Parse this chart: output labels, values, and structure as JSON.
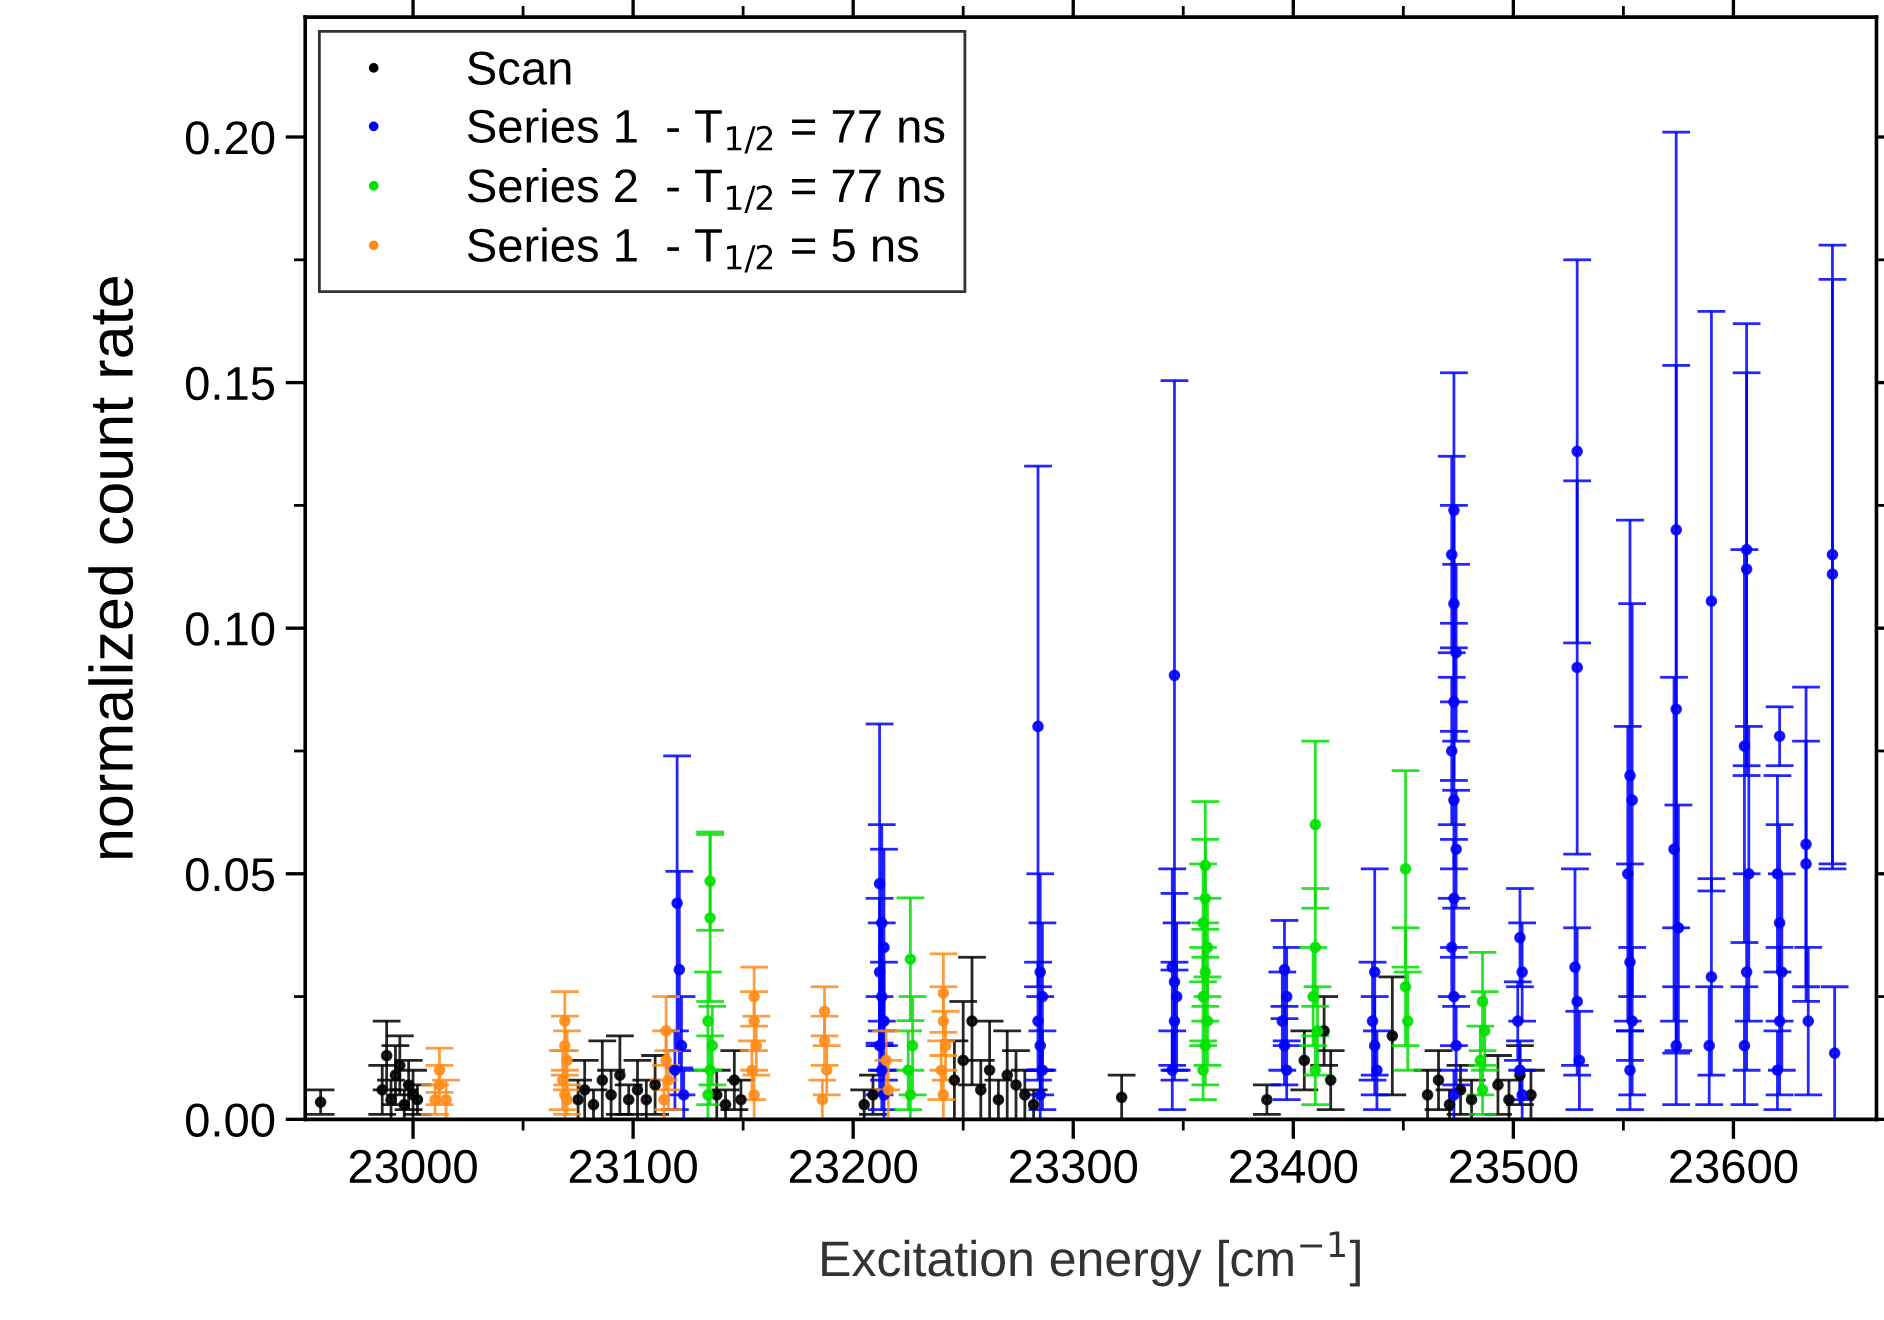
{
  "chart_data": {
    "type": "scatter",
    "xlabel": "Excitation energy [cm$^{−1}$]",
    "ylabel": "normalized count rate",
    "xlim": [
      22951,
      23665
    ],
    "ylim": [
      0,
      0.2244
    ],
    "xticks": [
      23000,
      {
        "value": 23050,
        "label": null
      },
      23100,
      {
        "value": 23150,
        "label": null
      },
      23200,
      {
        "value": 23250,
        "label": null
      },
      23300,
      {
        "value": 23350,
        "label": null
      },
      23400,
      {
        "value": 23450,
        "label": null
      },
      23500,
      {
        "value": 23550,
        "label": null
      },
      23600
    ],
    "yticks": [
      {
        "value": 0,
        "label": "0.00"
      },
      {
        "value": 0.025,
        "label": null
      },
      {
        "value": 0.05,
        "label": "0.05"
      },
      {
        "value": 0.075,
        "label": null
      },
      {
        "value": 0.1,
        "label": "0.10"
      },
      {
        "value": 0.125,
        "label": null
      },
      {
        "value": 0.15,
        "label": "0.15"
      },
      {
        "value": 0.175,
        "label": null
      },
      {
        "value": 0.2,
        "label": "0.20"
      }
    ],
    "marker": "circle",
    "legend": "top left",
    "grid": false,
    "series": [
      {
        "name": "Scan",
        "color": "#000000",
        "x": [
          22958,
          22986,
          22988,
          22990,
          22992,
          22994,
          22996,
          22998,
          23000,
          23002,
          23075,
          23078,
          23082,
          23086,
          23090,
          23094,
          23098,
          23102,
          23106,
          23110,
          23138,
          23142,
          23146,
          23149,
          23205,
          23209,
          23246,
          23250,
          23254,
          23258,
          23262,
          23266,
          23270,
          23274,
          23278,
          23282,
          23322,
          23388,
          23405,
          23414,
          23417,
          23445,
          23461,
          23466,
          23471,
          23476,
          23481,
          23493,
          23498,
          23503,
          23508
        ],
        "values": [
          0.0035,
          0.006,
          0.013,
          0.004,
          0.009,
          0.011,
          0.003,
          0.007,
          0.005,
          0.004,
          0.004,
          0.006,
          0.003,
          0.008,
          0.005,
          0.009,
          0.004,
          0.006,
          0.004,
          0.007,
          0.005,
          0.003,
          0.008,
          0.004,
          0.003,
          0.005,
          0.008,
          0.012,
          0.02,
          0.006,
          0.01,
          0.004,
          0.009,
          0.007,
          0.005,
          0.003,
          0.0045,
          0.004,
          0.012,
          0.018,
          0.008,
          0.017,
          0.005,
          0.008,
          0.003,
          0.006,
          0.004,
          0.007,
          0.004,
          0.009,
          0.005
        ],
        "errors": [
          0.0025,
          0.005,
          0.007,
          0.004,
          0.006,
          0.006,
          0.003,
          0.005,
          0.005,
          0.003,
          0.004,
          0.006,
          0.003,
          0.008,
          0.005,
          0.008,
          0.003,
          0.006,
          0.004,
          0.006,
          0.005,
          0.003,
          0.006,
          0.004,
          0.003,
          0.004,
          0.008,
          0.012,
          0.013,
          0.006,
          0.01,
          0.004,
          0.009,
          0.007,
          0.005,
          0.003,
          0.0045,
          0.003,
          0.006,
          0.007,
          0.006,
          0.012,
          0.005,
          0.006,
          0.003,
          0.005,
          0.004,
          0.006,
          0.004,
          0.006,
          0.005
        ]
      },
      {
        "name": "Series 1  - T$_{1/2}$ = 77 ns",
        "color": "#0000ff",
        "x": [
          23120,
          23121,
          23122,
          23119,
          23123,
          23212,
          23213,
          23214,
          23212,
          23213,
          23214,
          23212,
          23213,
          23214,
          23284,
          23285,
          23286,
          23284,
          23285,
          23286,
          23285,
          23346,
          23345,
          23346,
          23347,
          23346,
          23345,
          23396,
          23397,
          23395,
          23396,
          23397,
          23437,
          23436,
          23437,
          23438,
          23473,
          23472,
          23473,
          23474,
          23473,
          23472,
          23473,
          23474,
          23473,
          23472,
          23473,
          23474,
          23473,
          23503,
          23504,
          23502,
          23503,
          23504,
          23529,
          23529,
          23528,
          23529,
          23530,
          23553,
          23554,
          23552,
          23553,
          23554,
          23553,
          23574,
          23574,
          23573,
          23575,
          23574,
          23590,
          23590,
          23589,
          23606,
          23606,
          23605,
          23607,
          23606,
          23605,
          23621,
          23620,
          23621,
          23622,
          23621,
          23620,
          23633,
          23633,
          23634,
          23645,
          23645,
          23646
        ],
        "values": [
          0.044,
          0.0305,
          0.015,
          0.01,
          0.005,
          0.048,
          0.04,
          0.035,
          0.03,
          0.025,
          0.02,
          0.015,
          0.01,
          0.005,
          0.08,
          0.03,
          0.025,
          0.02,
          0.015,
          0.01,
          0.005,
          0.0904,
          0.031,
          0.028,
          0.025,
          0.02,
          0.01,
          0.0305,
          0.025,
          0.02,
          0.015,
          0.01,
          0.03,
          0.02,
          0.015,
          0.01,
          0.124,
          0.115,
          0.105,
          0.095,
          0.085,
          0.075,
          0.065,
          0.055,
          0.045,
          0.035,
          0.025,
          0.015,
          0.005,
          0.037,
          0.03,
          0.02,
          0.01,
          0.005,
          0.136,
          0.092,
          0.031,
          0.024,
          0.012,
          0.07,
          0.065,
          0.05,
          0.032,
          0.02,
          0.01,
          0.12,
          0.0835,
          0.055,
          0.039,
          0.015,
          0.1055,
          0.029,
          0.015,
          0.116,
          0.112,
          0.076,
          0.05,
          0.03,
          0.015,
          0.078,
          0.05,
          0.04,
          0.03,
          0.02,
          0.01,
          0.056,
          0.052,
          0.02,
          0.115,
          0.111,
          0.0135
        ],
        "errors": [
          0.03,
          0.02,
          0.01,
          0.008,
          0.005,
          0.0325,
          0.02,
          0.02,
          0.015,
          0.015,
          0.012,
          0.01,
          0.008,
          0.005,
          0.053,
          0.02,
          0.015,
          0.012,
          0.01,
          0.008,
          0.005,
          0.06,
          0.02,
          0.018,
          0.015,
          0.012,
          0.008,
          0.01,
          0.01,
          0.01,
          0.008,
          0.006,
          0.021,
          0.012,
          0.01,
          0.008,
          0.028,
          0.02,
          0.02,
          0.018,
          0.016,
          0.015,
          0.014,
          0.012,
          0.012,
          0.01,
          0.01,
          0.008,
          0.005,
          0.01,
          0.01,
          0.008,
          0.006,
          0.005,
          0.039,
          0.038,
          0.02,
          0.015,
          0.01,
          0.052,
          0.04,
          0.03,
          0.02,
          0.015,
          0.008,
          0.081,
          0.07,
          0.035,
          0.025,
          0.012,
          0.059,
          0.02,
          0.012,
          0.046,
          0.04,
          0.04,
          0.03,
          0.02,
          0.012,
          0.006,
          0.02,
          0.02,
          0.02,
          0.015,
          0.008,
          0.032,
          0.025,
          0.015,
          0.063,
          0.06,
          0.0135
        ]
      },
      {
        "name": "Series 2  - T$_{1/2}$ = 77 ns",
        "color": "#00e000",
        "x": [
          23135,
          23135,
          23134,
          23136,
          23135,
          23134,
          23226,
          23227,
          23225,
          23226,
          23360,
          23360,
          23359,
          23361,
          23360,
          23359,
          23361,
          23360,
          23359,
          23410,
          23410,
          23409,
          23411,
          23410,
          23451,
          23451,
          23452,
          23486,
          23487,
          23485,
          23486
        ],
        "values": [
          0.0485,
          0.041,
          0.02,
          0.015,
          0.01,
          0.005,
          0.0326,
          0.015,
          0.01,
          0.005,
          0.0517,
          0.045,
          0.04,
          0.035,
          0.03,
          0.025,
          0.02,
          0.015,
          0.01,
          0.06,
          0.035,
          0.025,
          0.018,
          0.01,
          0.051,
          0.027,
          0.02,
          0.024,
          0.018,
          0.012,
          0.006
        ],
        "errors": [
          0.01,
          0.017,
          0.01,
          0.008,
          0.007,
          0.005,
          0.0125,
          0.01,
          0.008,
          0.005,
          0.013,
          0.012,
          0.012,
          0.01,
          0.01,
          0.01,
          0.009,
          0.008,
          0.006,
          0.017,
          0.012,
          0.01,
          0.009,
          0.007,
          0.02,
          0.012,
          0.01,
          0.01,
          0.008,
          0.007,
          0.005
        ]
      },
      {
        "name": "Series 1  - T$_{1/2}$ = 5 ns",
        "color": "#ff8c1a",
        "x": [
          23012,
          23012,
          23015,
          23010,
          23069,
          23069,
          23070,
          23068,
          23069,
          23070,
          23115,
          23115,
          23116,
          23114,
          23155,
          23155,
          23156,
          23154,
          23155,
          23187,
          23187,
          23188,
          23186,
          23215,
          23216,
          23241,
          23241,
          23242,
          23240,
          23241
        ],
        "values": [
          0.01,
          0.007,
          0.004,
          0.004,
          0.02,
          0.015,
          0.012,
          0.008,
          0.005,
          0.004,
          0.018,
          0.012,
          0.008,
          0.004,
          0.025,
          0.02,
          0.015,
          0.01,
          0.005,
          0.022,
          0.016,
          0.01,
          0.004,
          0.012,
          0.006,
          0.0257,
          0.02,
          0.015,
          0.01,
          0.005
        ],
        "errors": [
          0.0045,
          0.004,
          0.004,
          0.003,
          0.006,
          0.006,
          0.006,
          0.006,
          0.005,
          0.003,
          0.007,
          0.006,
          0.006,
          0.004,
          0.006,
          0.006,
          0.006,
          0.006,
          0.005,
          0.005,
          0.005,
          0.005,
          0.004,
          0.006,
          0.006,
          0.008,
          0.007,
          0.007,
          0.006,
          0.005
        ]
      }
    ]
  }
}
